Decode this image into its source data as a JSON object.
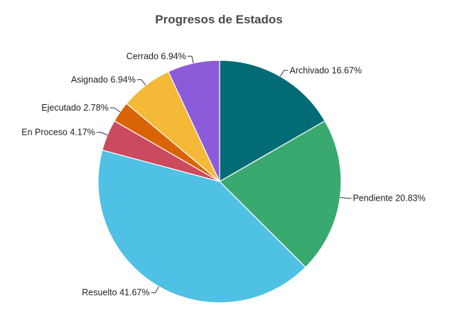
{
  "chart_data": {
    "type": "pie",
    "title": "Progresos de Estados",
    "slices": [
      {
        "name": "Archivado",
        "value": 16.67,
        "label": "Archivado 16.67%",
        "color": "#026b75"
      },
      {
        "name": "Pendiente",
        "value": 20.83,
        "label": "Pendiente 20.83%",
        "color": "#3aa970"
      },
      {
        "name": "Resuelto",
        "value": 41.67,
        "label": "Resuelto 41.67%",
        "color": "#4fc1e5"
      },
      {
        "name": "En Proceso",
        "value": 4.17,
        "label": "En Proceso 4.17%",
        "color": "#cc4a5e"
      },
      {
        "name": "Ejecutado",
        "value": 2.78,
        "label": "Ejecutado 2.78%",
        "color": "#d86406"
      },
      {
        "name": "Asignado",
        "value": 6.94,
        "label": "Asignado 6.94%",
        "color": "#f5b938"
      },
      {
        "name": "Cerrado",
        "value": 6.94,
        "label": "Cerrado 6.94%",
        "color": "#8c5bd9"
      }
    ],
    "start": "12 o'clock",
    "direction": "clockwise",
    "legend": "none",
    "data_labels": "outside with leader lines"
  }
}
